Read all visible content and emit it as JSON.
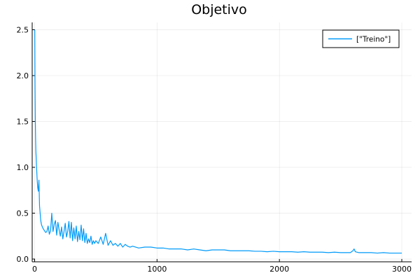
{
  "chart_data": {
    "type": "line",
    "title": "Objetivo",
    "xlabel": "",
    "ylabel": "",
    "xlim": [
      -20,
      3080
    ],
    "ylim": [
      -0.03,
      2.58
    ],
    "xticks": [
      0,
      1000,
      2000,
      3000
    ],
    "xtick_labels": [
      "0",
      "1000",
      "2000",
      "3000"
    ],
    "yticks": [
      0.0,
      0.5,
      1.0,
      1.5,
      2.0,
      2.5
    ],
    "ytick_labels": [
      "0.0",
      "0.5",
      "1.0",
      "1.5",
      "2.0",
      "2.5"
    ],
    "grid": true,
    "legend_position": "top-right",
    "series": [
      {
        "name": "[\"Treino\"]",
        "color": "#009af9",
        "x": [
          1,
          3,
          5,
          8,
          10,
          15,
          20,
          25,
          30,
          35,
          40,
          45,
          50,
          55,
          60,
          70,
          80,
          90,
          100,
          110,
          120,
          130,
          140,
          150,
          160,
          170,
          180,
          190,
          200,
          210,
          220,
          230,
          240,
          250,
          260,
          270,
          280,
          290,
          300,
          310,
          320,
          330,
          340,
          350,
          360,
          370,
          380,
          390,
          400,
          410,
          420,
          430,
          440,
          450,
          460,
          470,
          480,
          490,
          500,
          520,
          540,
          560,
          580,
          600,
          620,
          640,
          660,
          680,
          700,
          720,
          740,
          760,
          780,
          800,
          850,
          900,
          950,
          1000,
          1050,
          1100,
          1150,
          1200,
          1250,
          1300,
          1350,
          1400,
          1450,
          1500,
          1550,
          1600,
          1650,
          1700,
          1750,
          1800,
          1850,
          1900,
          1950,
          2000,
          2050,
          2100,
          2150,
          2200,
          2250,
          2300,
          2350,
          2400,
          2450,
          2500,
          2550,
          2580,
          2600,
          2610,
          2620,
          2650,
          2700,
          2750,
          2800,
          2850,
          2900,
          2950,
          3000
        ],
        "y": [
          2.5,
          1.9,
          1.55,
          1.3,
          1.18,
          1.02,
          0.88,
          0.78,
          0.74,
          0.86,
          0.58,
          0.5,
          0.42,
          0.38,
          0.36,
          0.33,
          0.31,
          0.29,
          0.3,
          0.36,
          0.27,
          0.31,
          0.5,
          0.3,
          0.38,
          0.42,
          0.26,
          0.4,
          0.32,
          0.25,
          0.35,
          0.22,
          0.3,
          0.39,
          0.24,
          0.3,
          0.41,
          0.23,
          0.4,
          0.2,
          0.34,
          0.22,
          0.36,
          0.19,
          0.3,
          0.21,
          0.37,
          0.2,
          0.33,
          0.18,
          0.28,
          0.17,
          0.22,
          0.18,
          0.25,
          0.16,
          0.2,
          0.17,
          0.2,
          0.17,
          0.24,
          0.16,
          0.28,
          0.15,
          0.2,
          0.15,
          0.17,
          0.14,
          0.17,
          0.13,
          0.16,
          0.14,
          0.13,
          0.14,
          0.12,
          0.13,
          0.13,
          0.12,
          0.12,
          0.11,
          0.11,
          0.11,
          0.1,
          0.11,
          0.1,
          0.09,
          0.1,
          0.1,
          0.1,
          0.09,
          0.09,
          0.09,
          0.09,
          0.085,
          0.085,
          0.08,
          0.085,
          0.08,
          0.08,
          0.08,
          0.075,
          0.08,
          0.075,
          0.075,
          0.075,
          0.07,
          0.075,
          0.07,
          0.07,
          0.07,
          0.09,
          0.11,
          0.08,
          0.07,
          0.07,
          0.07,
          0.065,
          0.07,
          0.065,
          0.065,
          0.065
        ]
      }
    ]
  }
}
